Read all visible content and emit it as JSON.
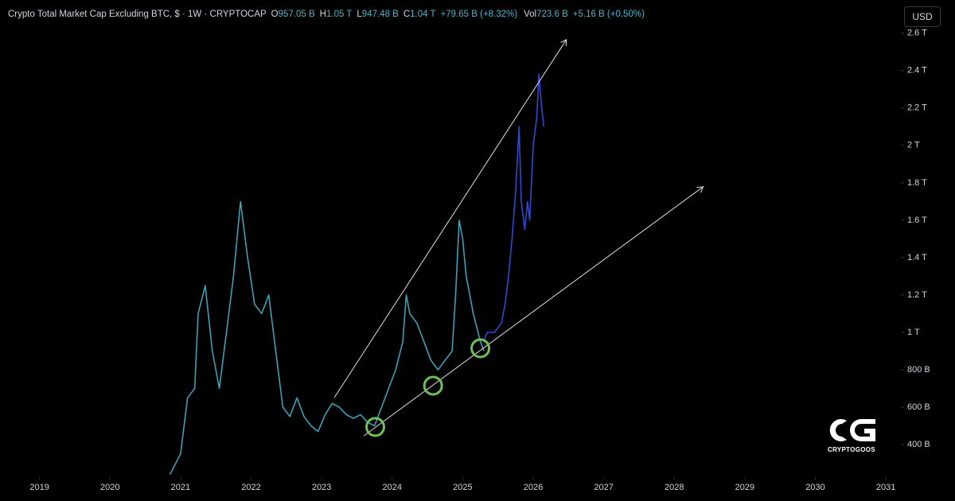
{
  "chart_data": {
    "type": "line",
    "title": "Crypto Total Market Cap Excluding BTC, $ · 1W · CRYPTOCAP",
    "ohlc": [
      {
        "label": "O",
        "value": "957.05 B"
      },
      {
        "label": "H",
        "value": "1.05 T"
      },
      {
        "label": "L",
        "value": "947.48 B"
      },
      {
        "label": "C",
        "value": "1.04 T"
      }
    ],
    "change": "+79.65 B (+8.32%)",
    "volume": {
      "label": "Vol",
      "value": "723.6 B",
      "change": "+5.16 B (+0.50%)"
    },
    "currency": "USD",
    "watermark": "CRYPTOGOOS",
    "xlim": [
      2018.44,
      2031.19
    ],
    "xticks": [
      2019,
      2020,
      2021,
      2022,
      2023,
      2024,
      2025,
      2026,
      2027,
      2028,
      2029,
      2030,
      2031
    ],
    "ylim": [
      230,
      2650
    ],
    "yticks": [
      {
        "value": 400,
        "label": "400 B"
      },
      {
        "value": 600,
        "label": "600 B"
      },
      {
        "value": 800,
        "label": "800 B"
      },
      {
        "value": 1000,
        "label": "1 T"
      },
      {
        "value": 1200,
        "label": "1.2 T"
      },
      {
        "value": 1400,
        "label": "1.4 T"
      },
      {
        "value": 1600,
        "label": "1.6 T"
      },
      {
        "value": 1800,
        "label": "1.8 T"
      },
      {
        "value": 2000,
        "label": "2 T"
      },
      {
        "value": 2200,
        "label": "2.2 T"
      },
      {
        "value": 2400,
        "label": "2.4 T"
      },
      {
        "value": 2600,
        "label": "2.6 T"
      }
    ],
    "grid": false,
    "series": [
      {
        "color": "#3f9fb5",
        "x": [
          2020.85,
          2021.0,
          2021.1,
          2021.2,
          2021.25,
          2021.35,
          2021.45,
          2021.55,
          2021.65,
          2021.75,
          2021.8,
          2021.85,
          2021.95,
          2022.05,
          2022.15,
          2022.25,
          2022.35,
          2022.45,
          2022.55,
          2022.65,
          2022.75,
          2022.85,
          2022.95,
          2023.05,
          2023.15,
          2023.25,
          2023.35,
          2023.45,
          2023.55,
          2023.65,
          2023.75,
          2023.85,
          2023.95,
          2024.05,
          2024.15,
          2024.2,
          2024.25,
          2024.35,
          2024.45,
          2024.55,
          2024.65,
          2024.75,
          2024.85,
          2024.9,
          2024.95,
          2025.0,
          2025.05,
          2025.1,
          2025.15,
          2025.25,
          2025.3
        ],
        "values": [
          240,
          350,
          650,
          700,
          1100,
          1250,
          900,
          700,
          1000,
          1300,
          1500,
          1700,
          1400,
          1150,
          1100,
          1200,
          900,
          600,
          550,
          650,
          550,
          500,
          470,
          560,
          620,
          600,
          560,
          540,
          560,
          520,
          500,
          600,
          700,
          800,
          950,
          1200,
          1100,
          1050,
          950,
          850,
          800,
          850,
          900,
          1200,
          1600,
          1500,
          1300,
          1200,
          1100,
          950,
          900
        ]
      },
      {
        "color": "#3347d1",
        "x": [
          2025.3,
          2025.35,
          2025.45,
          2025.55,
          2025.6,
          2025.65,
          2025.7,
          2025.75,
          2025.8,
          2025.83,
          2025.88,
          2025.92,
          2025.95,
          2026.0,
          2026.05,
          2026.08,
          2026.12,
          2026.15
        ],
        "values": [
          960,
          1000,
          1000,
          1050,
          1150,
          1300,
          1500,
          1750,
          2100,
          1700,
          1550,
          1700,
          1600,
          2000,
          2150,
          2380,
          2200,
          2100
        ]
      }
    ],
    "trend_lines": [
      {
        "x": [
          2023.18,
          2026.47
        ],
        "values": [
          651,
          2566
        ]
      },
      {
        "x": [
          2023.6,
          2028.41
        ],
        "values": [
          447,
          1779
        ]
      }
    ],
    "highlights": {
      "x": [
        2023.76,
        2024.58,
        2025.25
      ],
      "values": [
        494,
        715,
        915
      ]
    }
  }
}
